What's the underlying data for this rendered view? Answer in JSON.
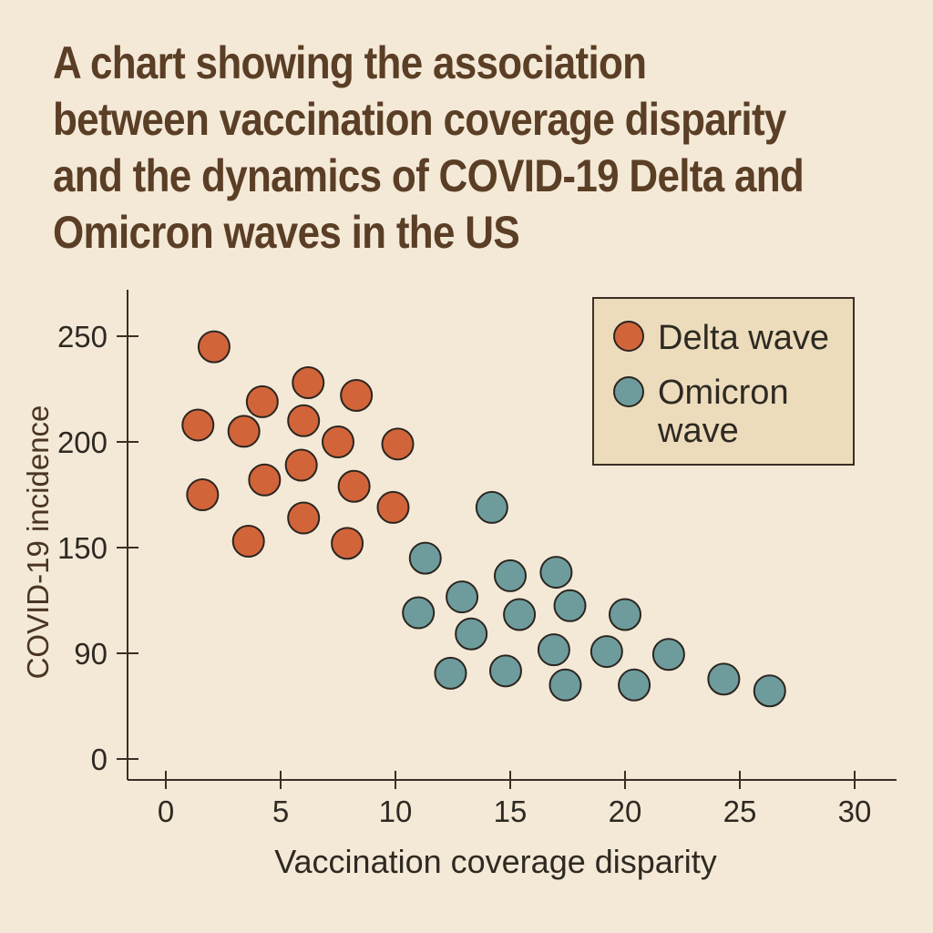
{
  "title": "A chart showing the association between vaccination coverage disparity and the dynamics of COVID-19 Delta and Omicron waves in the US",
  "chart_data": {
    "type": "scatter",
    "title": "A chart showing the association between vaccination coverage disparity and the dynamics of COVID-19 Delta and Omicron waves in the US",
    "xlabel": "Vaccination coverage disparity",
    "ylabel": "COVID-19 incidence",
    "x_ticks": [
      "0",
      "5",
      "10",
      "15",
      "20",
      "25",
      "30"
    ],
    "y_ticks": [
      "0",
      "90",
      "150",
      "200",
      "250"
    ],
    "grid": false,
    "legend_position": "top-right",
    "series": [
      {
        "name": "Delta wave",
        "color": "#d2643a",
        "points": [
          {
            "x": 2.1,
            "y": 245
          },
          {
            "x": 6.2,
            "y": 228
          },
          {
            "x": 4.2,
            "y": 219
          },
          {
            "x": 8.3,
            "y": 222
          },
          {
            "x": 1.4,
            "y": 208
          },
          {
            "x": 3.4,
            "y": 205
          },
          {
            "x": 6.0,
            "y": 210
          },
          {
            "x": 7.5,
            "y": 200
          },
          {
            "x": 10.1,
            "y": 199
          },
          {
            "x": 5.9,
            "y": 189
          },
          {
            "x": 4.3,
            "y": 182
          },
          {
            "x": 8.2,
            "y": 179
          },
          {
            "x": 1.6,
            "y": 175
          },
          {
            "x": 9.9,
            "y": 169
          },
          {
            "x": 6.0,
            "y": 164
          },
          {
            "x": 3.6,
            "y": 153
          },
          {
            "x": 7.9,
            "y": 152
          }
        ]
      },
      {
        "name": "Omicron wave",
        "color": "#6e9c9c",
        "points": [
          {
            "x": 14.2,
            "y": 169
          },
          {
            "x": 11.3,
            "y": 144
          },
          {
            "x": 15.0,
            "y": 134
          },
          {
            "x": 17.0,
            "y": 136
          },
          {
            "x": 12.9,
            "y": 122
          },
          {
            "x": 11.0,
            "y": 113
          },
          {
            "x": 15.4,
            "y": 112
          },
          {
            "x": 17.6,
            "y": 117
          },
          {
            "x": 20.0,
            "y": 112
          },
          {
            "x": 13.3,
            "y": 101
          },
          {
            "x": 16.9,
            "y": 92
          },
          {
            "x": 19.2,
            "y": 91
          },
          {
            "x": 21.9,
            "y": 89
          },
          {
            "x": 12.4,
            "y": 73
          },
          {
            "x": 14.8,
            "y": 75
          },
          {
            "x": 17.4,
            "y": 63
          },
          {
            "x": 20.4,
            "y": 63
          },
          {
            "x": 24.3,
            "y": 68
          },
          {
            "x": 26.3,
            "y": 58
          }
        ]
      }
    ]
  }
}
